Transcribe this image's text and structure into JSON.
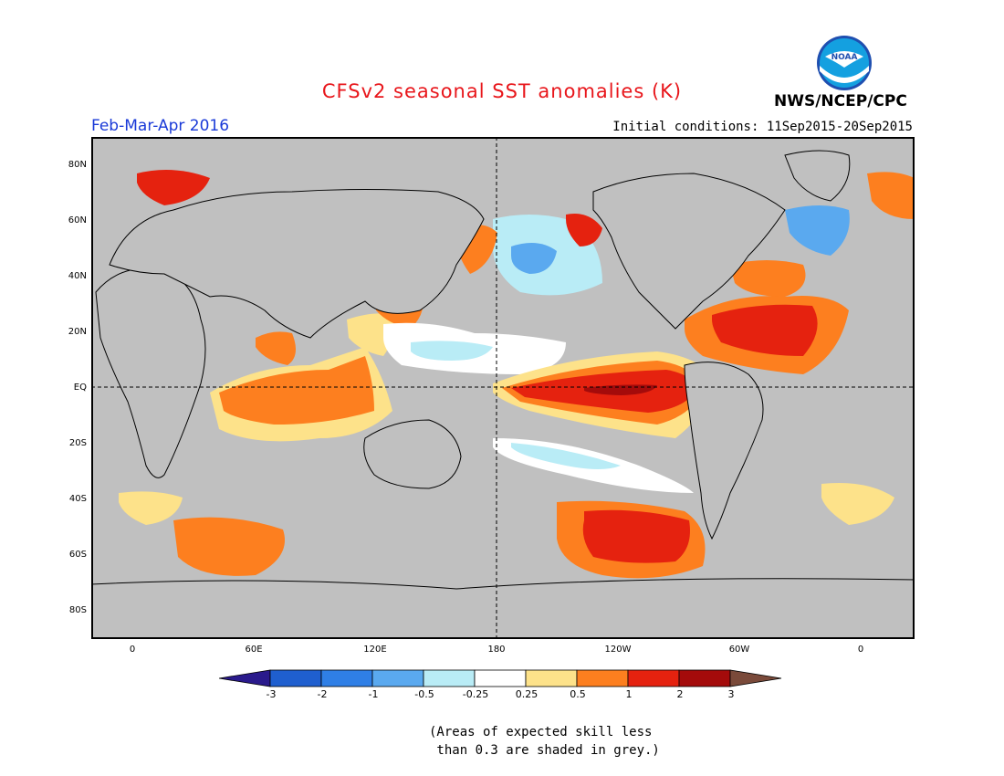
{
  "header": {
    "title": "CFSv2 seasonal SST anomalies (K)",
    "season": "Feb-Mar-Apr 2016",
    "initial_conditions": "Initial conditions: 11Sep2015-20Sep2015",
    "agency": "NWS/NCEP/CPC",
    "logo_text": "NOAA"
  },
  "colors": {
    "title": "#e8161b",
    "season": "#1a3ad8",
    "land": "#c0c0c0",
    "bins": [
      "#2a1a8c",
      "#1f5fcf",
      "#2f7fe6",
      "#5aa9ef",
      "#b9ecf6",
      "#ffffff",
      "#fde28a",
      "#fd7f1f",
      "#e5220f",
      "#a40b0b",
      "#7a4a3a"
    ]
  },
  "axes": {
    "x_ticks": [
      "0",
      "60E",
      "120E",
      "180",
      "120W",
      "60W",
      "0"
    ],
    "y_ticks": [
      "80N",
      "60N",
      "40N",
      "20N",
      "EQ",
      "20S",
      "40S",
      "60S",
      "80S"
    ]
  },
  "colorbar": {
    "labels": [
      "-3",
      "-2",
      "-1",
      "-0.5",
      "-0.25",
      "0.25",
      "0.5",
      "1",
      "2",
      "3"
    ]
  },
  "note": "(Areas of expected skill less\n than 0.3 are shaded in grey.)"
}
